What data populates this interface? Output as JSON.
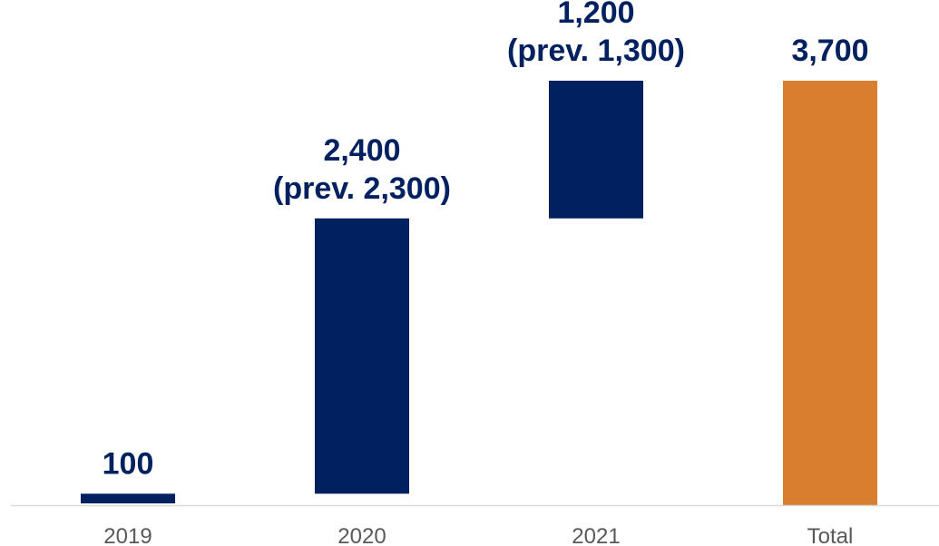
{
  "chart_data": {
    "type": "bar",
    "subtype": "waterfall",
    "categories": [
      "2019",
      "2020",
      "2021",
      "Total"
    ],
    "values": [
      100,
      2400,
      1200,
      3700
    ],
    "labels": [
      [
        "100"
      ],
      [
        "2,400",
        "(prev. 2,300)"
      ],
      [
        "1,200",
        "(prev. 1,300)"
      ],
      [
        "3,700"
      ]
    ],
    "title": "",
    "xlabel": "",
    "ylabel": "",
    "ylim": [
      0,
      3700
    ],
    "grid": false,
    "legend": "none",
    "colors": {
      "increment": "#002060",
      "total": "#D97E2F",
      "axis": "#D9D9D9",
      "tick_text": "#595959"
    }
  }
}
